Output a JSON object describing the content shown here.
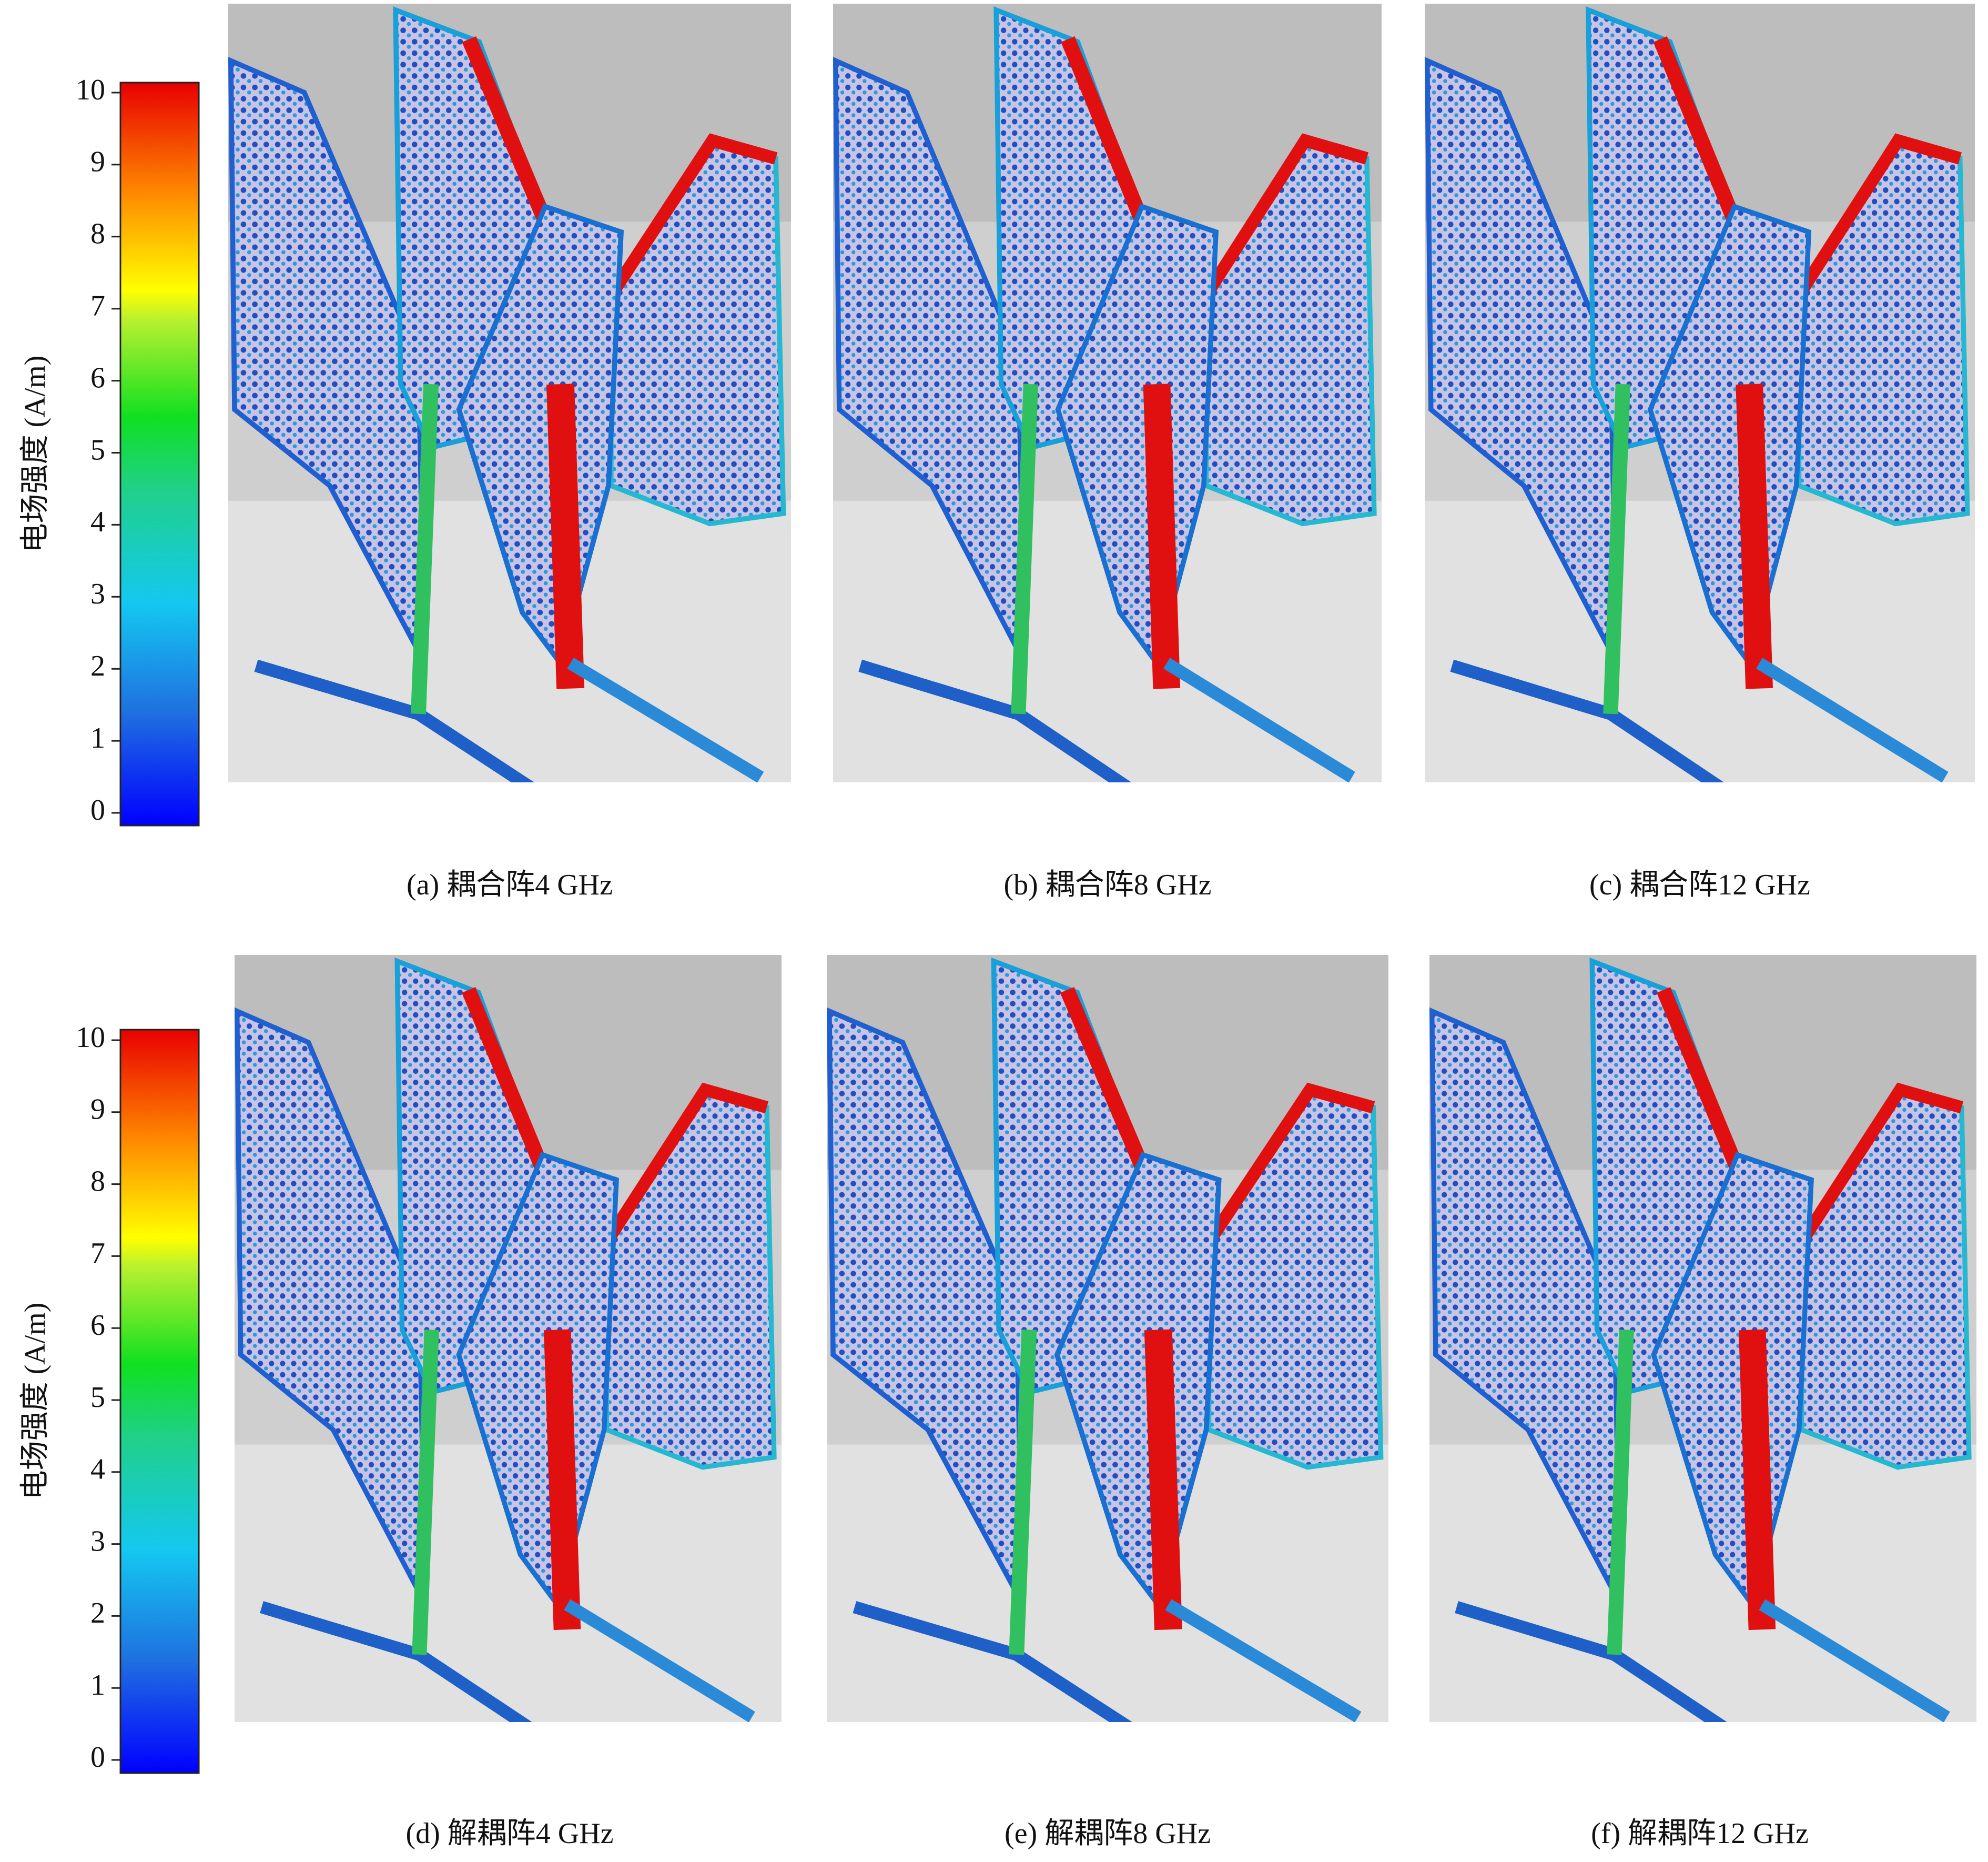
{
  "colorbars": [
    {
      "label": "电场强度 (A/m)",
      "lim": [
        0,
        10
      ],
      "ticks": [
        0,
        1,
        2,
        3,
        4,
        5,
        6,
        7,
        8,
        9,
        10
      ]
    },
    {
      "label": "电场强度 (A/m)",
      "lim": [
        0,
        10
      ],
      "ticks": [
        0,
        1,
        2,
        3,
        4,
        5,
        6,
        7,
        8,
        9,
        10
      ]
    }
  ],
  "panels": [
    {
      "caption": "(a) 耦合阵4 GHz"
    },
    {
      "caption": "(b) 耦合阵8 GHz"
    },
    {
      "caption": "(c) 耦合阵12 GHz"
    },
    {
      "caption": "(d) 解耦阵4 GHz"
    },
    {
      "caption": "(e) 解耦阵8 GHz"
    },
    {
      "caption": "(f) 解耦阵12 GHz"
    }
  ]
}
